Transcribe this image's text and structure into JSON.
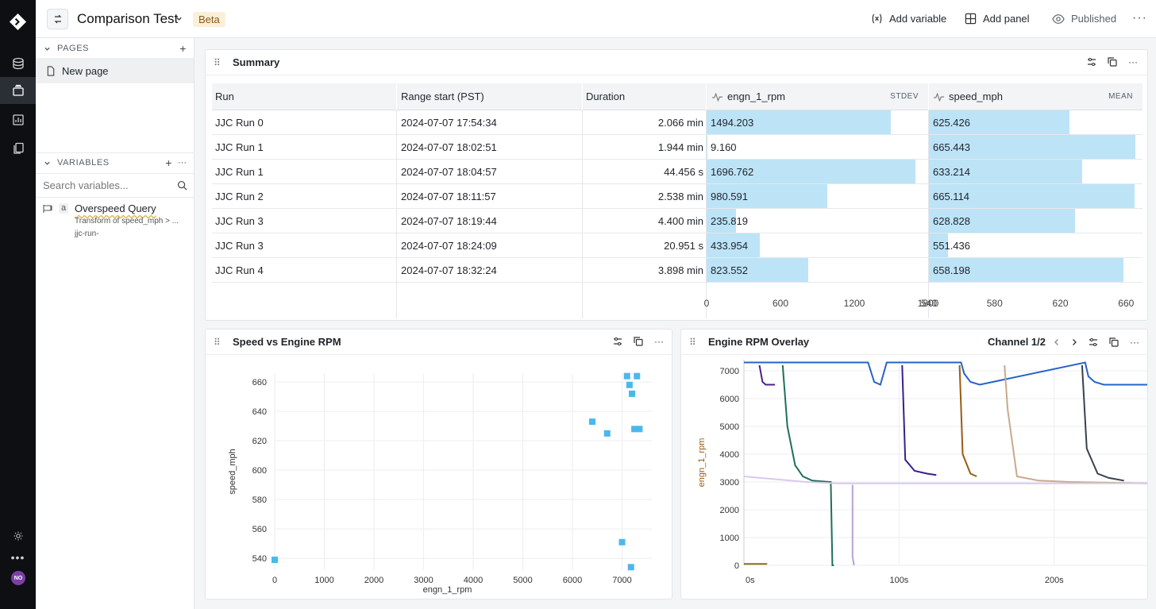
{
  "app": {
    "title": "Comparison Test",
    "badge": "Beta",
    "actions": {
      "add_variable": "Add variable",
      "add_panel": "Add panel",
      "published": "Published"
    }
  },
  "rail": {
    "avatar": "NO"
  },
  "sidebar": {
    "pages_header": "PAGES",
    "pages": [
      {
        "label": "New page"
      }
    ],
    "variables_header": "VARIABLES",
    "search_placeholder": "Search variables...",
    "variables": [
      {
        "type": "a",
        "name": "Overspeed Query",
        "description": "Transform of speed_mph > ...",
        "sub": "jjc-run-"
      }
    ]
  },
  "summary": {
    "title": "Summary",
    "columns": {
      "run": "Run",
      "range_start": "Range start (PST)",
      "duration": "Duration",
      "rpm": "engn_1_rpm",
      "rpm_stat": "STDEV",
      "speed": "speed_mph",
      "speed_stat": "MEAN"
    },
    "rows": [
      {
        "run": "JJC Run 0",
        "start": "2024-07-07  17:54:34",
        "duration": "2.066 min",
        "rpm": "1494.203",
        "speed": "625.426"
      },
      {
        "run": "JJC Run 1",
        "start": "2024-07-07  18:02:51",
        "duration": "1.944 min",
        "rpm": "9.160",
        "speed": "665.443"
      },
      {
        "run": "JJC Run 1",
        "start": "2024-07-07  18:04:57",
        "duration": "44.456 s",
        "rpm": "1696.762",
        "speed": "633.214"
      },
      {
        "run": "JJC Run 2",
        "start": "2024-07-07  18:11:57",
        "duration": "2.538 min",
        "rpm": "980.591",
        "speed": "665.114"
      },
      {
        "run": "JJC Run 3",
        "start": "2024-07-07  18:19:44",
        "duration": "4.400 min",
        "rpm": "235.819",
        "speed": "628.828"
      },
      {
        "run": "JJC Run 3",
        "start": "2024-07-07  18:24:09",
        "duration": "20.951 s",
        "rpm": "433.954",
        "speed": "551.436"
      },
      {
        "run": "JJC Run 4",
        "start": "2024-07-07  18:32:24",
        "duration": "3.898 min",
        "rpm": "823.552",
        "speed": "658.198"
      }
    ],
    "rpm_axis": {
      "min": 0,
      "max": 1800,
      "ticks": [
        "0",
        "600",
        "1200",
        "1800"
      ]
    },
    "speed_axis": {
      "min": 540,
      "max": 670,
      "ticks": [
        "540",
        "580",
        "620",
        "660"
      ]
    },
    "colors": {
      "bar": "#bde3f7"
    }
  },
  "scatter": {
    "title": "Speed vs Engine RPM",
    "chart_data": {
      "type": "scatter",
      "title": "Speed vs Engine RPM",
      "xlabel": "engn_1_rpm",
      "ylabel": "speed_mph",
      "xlim": [
        0,
        7600
      ],
      "ylim": [
        532,
        666
      ],
      "xticks": [
        0,
        1000,
        2000,
        3000,
        4000,
        5000,
        6000,
        7000
      ],
      "yticks": [
        540,
        560,
        580,
        600,
        620,
        640,
        660
      ],
      "grid": true,
      "color": "#4ab8ec",
      "points": [
        {
          "x": 0,
          "y": 539
        },
        {
          "x": 6400,
          "y": 633
        },
        {
          "x": 6700,
          "y": 625
        },
        {
          "x": 7100,
          "y": 664
        },
        {
          "x": 7150,
          "y": 658
        },
        {
          "x": 7200,
          "y": 652
        },
        {
          "x": 7300,
          "y": 664
        },
        {
          "x": 7250,
          "y": 628
        },
        {
          "x": 7350,
          "y": 628
        },
        {
          "x": 7000,
          "y": 551
        },
        {
          "x": 7180,
          "y": 534
        }
      ]
    }
  },
  "overlay": {
    "title": "Engine RPM Overlay",
    "channel": "Channel 1/2",
    "chart_data": {
      "type": "line",
      "title": "Engine RPM Overlay",
      "ylabel": "engn_1_rpm",
      "xlim": [
        0,
        260
      ],
      "ylim": [
        0,
        7400
      ],
      "xticks": [
        "0s",
        "100s",
        "200s"
      ],
      "xtick_values": [
        0,
        100,
        200
      ],
      "yticks": [
        0,
        1000,
        2000,
        3000,
        4000,
        5000,
        6000,
        7000
      ],
      "grid": true,
      "series": [
        {
          "color": "#2563c9",
          "x": [
            0,
            80,
            84,
            88,
            92,
            140,
            142,
            146,
            152,
            220,
            222,
            226,
            232,
            245,
            260
          ],
          "y": [
            7300,
            7300,
            6600,
            6500,
            7300,
            7300,
            6900,
            6600,
            6500,
            7300,
            6800,
            6600,
            6500,
            6500,
            6500
          ]
        },
        {
          "color": "#4c1d95",
          "x": [
            10,
            12,
            14,
            20
          ],
          "y": [
            7200,
            6600,
            6500,
            6500
          ]
        },
        {
          "color": "#1f6f5c",
          "x": [
            25,
            28,
            33,
            38,
            44,
            55,
            56,
            57,
            58
          ],
          "y": [
            7200,
            5000,
            3600,
            3200,
            3050,
            3000,
            3000,
            0,
            0
          ]
        },
        {
          "color": "#3b1d8f",
          "x": [
            102,
            104,
            110,
            118,
            124
          ],
          "y": [
            7200,
            3800,
            3400,
            3300,
            3250
          ]
        },
        {
          "color": "#9a5b12",
          "x": [
            139,
            141,
            146,
            150
          ],
          "y": [
            7200,
            4000,
            3300,
            3200
          ]
        },
        {
          "color": "#374151",
          "x": [
            218,
            221,
            228,
            235,
            245
          ],
          "y": [
            7200,
            4200,
            3300,
            3150,
            3050
          ]
        },
        {
          "color": "#c9a98b",
          "x": [
            168,
            170,
            176,
            190,
            210,
            260
          ],
          "y": [
            7200,
            5600,
            3200,
            3050,
            3000,
            2950
          ]
        },
        {
          "color": "#d8c9ef",
          "x": [
            0,
            40,
            60,
            100,
            200,
            260
          ],
          "y": [
            3200,
            3000,
            2950,
            2950,
            2950,
            2950
          ]
        },
        {
          "color": "#b9a0d6",
          "x": [
            70,
            70,
            71
          ],
          "y": [
            2900,
            300,
            0
          ]
        },
        {
          "color": "#8a6d1a",
          "x": [
            0,
            15
          ],
          "y": [
            50,
            50
          ]
        }
      ]
    }
  }
}
